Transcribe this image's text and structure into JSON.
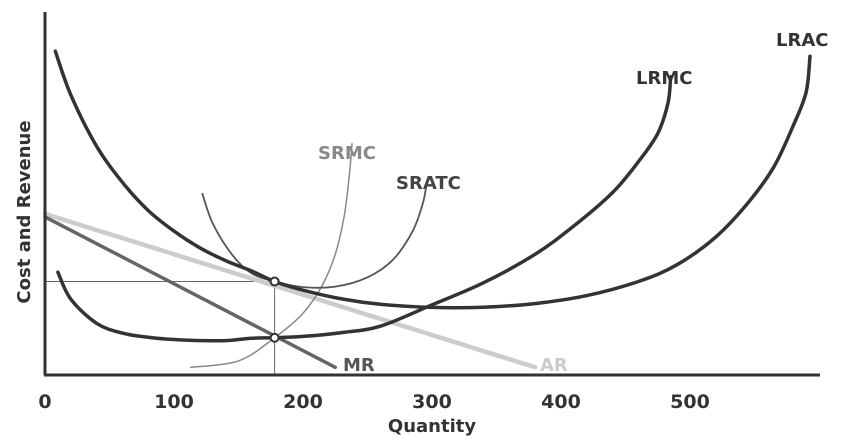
{
  "chart_data": {
    "type": "line",
    "title": "",
    "xlabel": "Quantity",
    "ylabel": "Cost and Revenue",
    "xlim": [
      0,
      600
    ],
    "ylim": [
      0,
      14
    ],
    "xticks": [
      0,
      100,
      200,
      300,
      400,
      500
    ],
    "grid": false,
    "legend": "none",
    "series": [
      {
        "name": "LRAC",
        "color": "#333333",
        "points": [
          [
            8,
            12.6
          ],
          [
            20,
            10.9
          ],
          [
            40,
            8.9
          ],
          [
            60,
            7.5
          ],
          [
            80,
            6.4
          ],
          [
            100,
            5.6
          ],
          [
            120,
            4.95
          ],
          [
            140,
            4.45
          ],
          [
            160,
            4.05
          ],
          [
            178,
            3.64
          ],
          [
            200,
            3.3
          ],
          [
            230,
            2.96
          ],
          [
            260,
            2.75
          ],
          [
            300,
            2.63
          ],
          [
            340,
            2.64
          ],
          [
            380,
            2.78
          ],
          [
            420,
            3.09
          ],
          [
            460,
            3.64
          ],
          [
            490,
            4.29
          ],
          [
            520,
            5.37
          ],
          [
            545,
            6.7
          ],
          [
            565,
            8.1
          ],
          [
            580,
            9.7
          ],
          [
            590,
            11.0
          ],
          [
            593,
            12.4
          ]
        ]
      },
      {
        "name": "LRMC",
        "color": "#333333",
        "points": [
          [
            10,
            4.0
          ],
          [
            20,
            2.95
          ],
          [
            40,
            2.01
          ],
          [
            60,
            1.63
          ],
          [
            80,
            1.47
          ],
          [
            100,
            1.38
          ],
          [
            120,
            1.34
          ],
          [
            140,
            1.34
          ],
          [
            160,
            1.43
          ],
          [
            178,
            1.45
          ],
          [
            200,
            1.5
          ],
          [
            230,
            1.65
          ],
          [
            260,
            1.9
          ],
          [
            300,
            2.73
          ],
          [
            340,
            3.59
          ],
          [
            380,
            4.7
          ],
          [
            410,
            5.8
          ],
          [
            440,
            7.1
          ],
          [
            460,
            8.3
          ],
          [
            475,
            9.4
          ],
          [
            483,
            10.6
          ],
          [
            485,
            11.6
          ]
        ]
      },
      {
        "name": "SRMC",
        "color": "#888888",
        "points": [
          [
            113,
            0.3
          ],
          [
            150,
            0.55
          ],
          [
            178,
            1.45
          ],
          [
            200,
            2.4
          ],
          [
            215,
            3.5
          ],
          [
            225,
            4.7
          ],
          [
            232,
            6.2
          ],
          [
            236,
            7.8
          ],
          [
            238,
            9.0
          ]
        ]
      },
      {
        "name": "SRATC",
        "color": "#555555",
        "points": [
          [
            122,
            7.05
          ],
          [
            130,
            5.9
          ],
          [
            145,
            4.68
          ],
          [
            160,
            3.96
          ],
          [
            178,
            3.64
          ],
          [
            200,
            3.42
          ],
          [
            225,
            3.44
          ],
          [
            250,
            3.8
          ],
          [
            270,
            4.5
          ],
          [
            285,
            5.6
          ],
          [
            293,
            6.7
          ],
          [
            296,
            7.5
          ]
        ]
      },
      {
        "name": "AR",
        "color": "#cccccc",
        "points": [
          [
            0,
            6.27
          ],
          [
            380,
            0.3
          ]
        ]
      },
      {
        "name": "MR",
        "color": "#666666",
        "points": [
          [
            0,
            6.15
          ],
          [
            225,
            0.3
          ]
        ]
      }
    ],
    "points": [
      {
        "x": 178,
        "y": 3.64
      },
      {
        "x": 178,
        "y": 1.45
      }
    ],
    "reference_lines": [
      {
        "axis": "y",
        "value": 3.64,
        "from": 0,
        "to": 178
      },
      {
        "axis": "x",
        "value": 178,
        "from": 0,
        "to": 3.64
      }
    ]
  }
}
